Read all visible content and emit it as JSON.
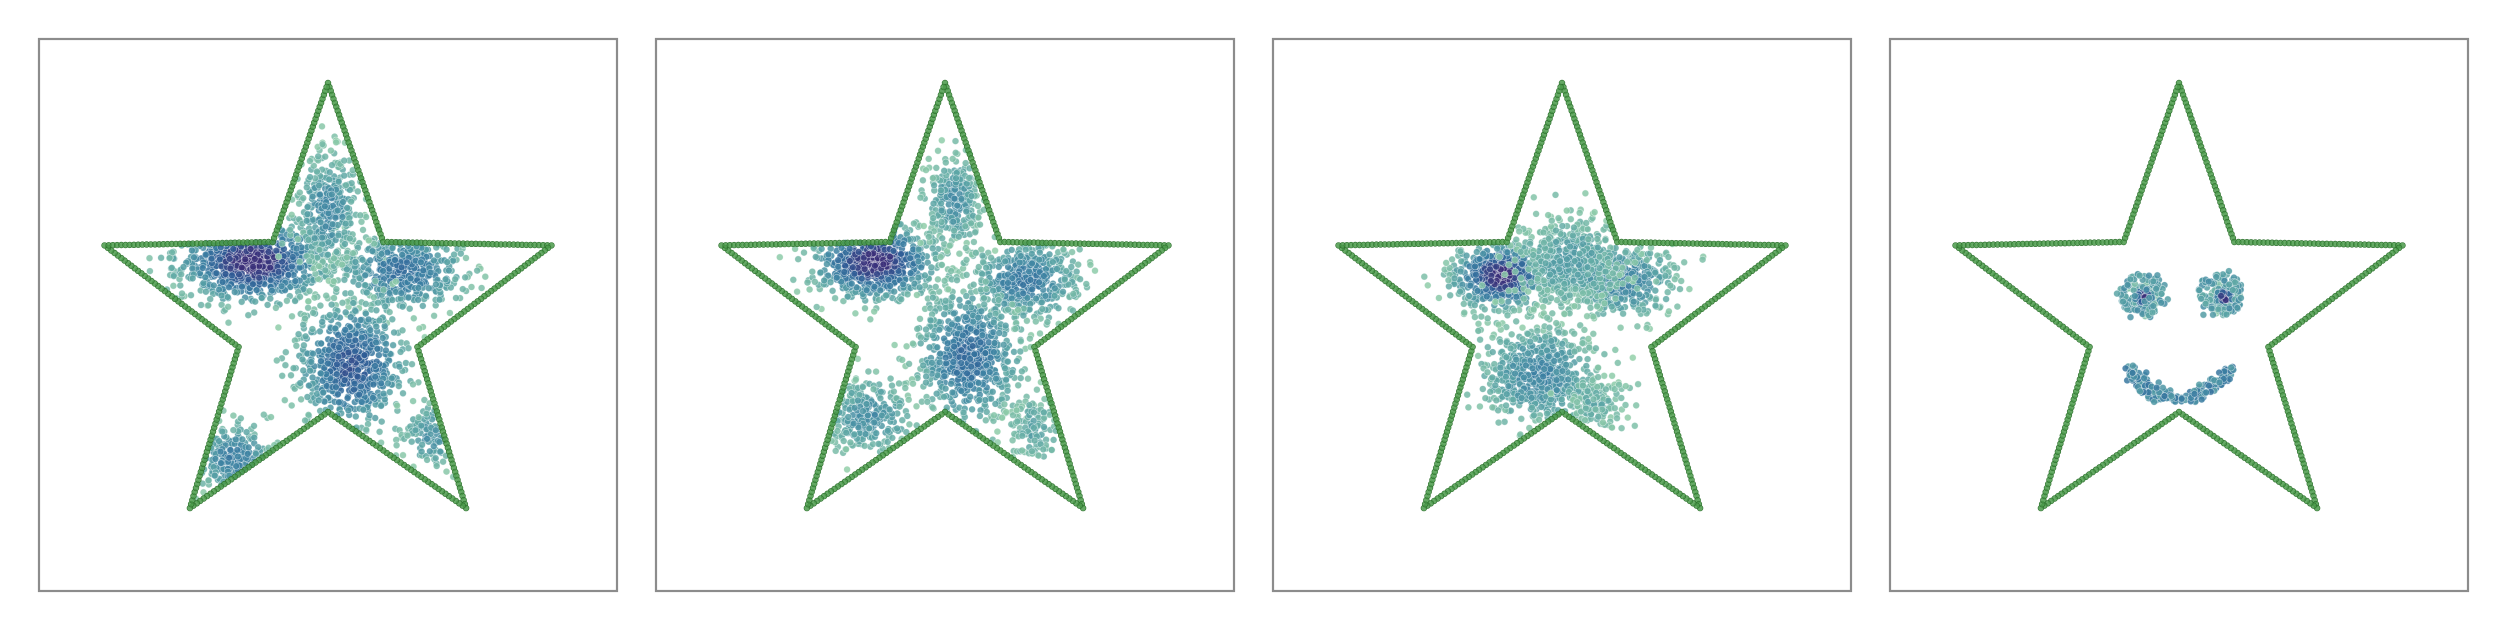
{
  "chart_data": [
    {
      "type": "scatter",
      "title": "",
      "xlabel": "",
      "ylabel": "",
      "axes": "hidden",
      "grid": false,
      "legend": "none",
      "outline_color": "#4a9a4a",
      "outline_edge_color": "#2c6f2c",
      "colormap": [
        "#95d1a9",
        "#5aa4a6",
        "#3a7ea2",
        "#2f5d96",
        "#3b2f79"
      ],
      "star": {
        "cx": 0.5,
        "cy": 0.5,
        "outer_radius": 0.5,
        "inner_radius": 0.2
      },
      "clusters": [
        {
          "name": "",
          "cx": 0.34,
          "cy": 0.38,
          "sx": 0.08,
          "sy": 0.045,
          "count": 900,
          "density": 1.0
        },
        {
          "name": "",
          "cx": 0.66,
          "cy": 0.4,
          "sx": 0.07,
          "sy": 0.045,
          "count": 500,
          "density": 0.55
        },
        {
          "name": "",
          "cx": 0.55,
          "cy": 0.6,
          "sx": 0.06,
          "sy": 0.07,
          "count": 700,
          "density": 0.75
        },
        {
          "name": "",
          "cx": 0.3,
          "cy": 0.8,
          "sx": 0.045,
          "sy": 0.04,
          "count": 260,
          "density": 0.45
        },
        {
          "name": "",
          "cx": 0.5,
          "cy": 0.27,
          "sx": 0.035,
          "sy": 0.06,
          "count": 350,
          "density": 0.4
        },
        {
          "name": "",
          "cx": 0.72,
          "cy": 0.75,
          "sx": 0.03,
          "sy": 0.04,
          "count": 120,
          "density": 0.3
        }
      ]
    },
    {
      "type": "scatter",
      "title": "",
      "xlabel": "",
      "ylabel": "",
      "axes": "hidden",
      "grid": false,
      "legend": "none",
      "clusters": [
        {
          "name": "",
          "cx": 0.35,
          "cy": 0.38,
          "sx": 0.065,
          "sy": 0.04,
          "count": 750,
          "density": 1.0
        },
        {
          "name": "",
          "cx": 0.67,
          "cy": 0.42,
          "sx": 0.06,
          "sy": 0.045,
          "count": 450,
          "density": 0.5
        },
        {
          "name": "",
          "cx": 0.55,
          "cy": 0.58,
          "sx": 0.055,
          "sy": 0.075,
          "count": 650,
          "density": 0.6
        },
        {
          "name": "",
          "cx": 0.34,
          "cy": 0.71,
          "sx": 0.05,
          "sy": 0.04,
          "count": 300,
          "density": 0.35
        },
        {
          "name": "",
          "cx": 0.52,
          "cy": 0.25,
          "sx": 0.03,
          "sy": 0.05,
          "count": 250,
          "density": 0.35
        },
        {
          "name": "",
          "cx": 0.69,
          "cy": 0.74,
          "sx": 0.03,
          "sy": 0.04,
          "count": 130,
          "density": 0.2
        }
      ]
    },
    {
      "type": "scatter",
      "title": "",
      "xlabel": "",
      "ylabel": "",
      "axes": "hidden",
      "grid": false,
      "legend": "none",
      "clusters": [
        {
          "name": "",
          "cx": 0.37,
          "cy": 0.41,
          "sx": 0.05,
          "sy": 0.035,
          "count": 600,
          "density": 1.0
        },
        {
          "name": "",
          "cx": 0.63,
          "cy": 0.42,
          "sx": 0.06,
          "sy": 0.04,
          "count": 420,
          "density": 0.45
        },
        {
          "name": "",
          "cx": 0.52,
          "cy": 0.38,
          "sx": 0.06,
          "sy": 0.05,
          "count": 500,
          "density": 0.25
        },
        {
          "name": "",
          "cx": 0.45,
          "cy": 0.62,
          "sx": 0.065,
          "sy": 0.055,
          "count": 650,
          "density": 0.4
        },
        {
          "name": "",
          "cx": 0.57,
          "cy": 0.68,
          "sx": 0.03,
          "sy": 0.03,
          "count": 140,
          "density": 0.15
        }
      ]
    },
    {
      "type": "scatter",
      "title": "",
      "xlabel": "",
      "ylabel": "",
      "axes": "hidden",
      "grid": false,
      "legend": "none",
      "rings": [
        {
          "name": "",
          "cx": 0.42,
          "cy": 0.45,
          "r": 0.04,
          "count": 90,
          "density": 0.35
        },
        {
          "name": "",
          "cx": 0.59,
          "cy": 0.45,
          "r": 0.04,
          "count": 90,
          "density": 0.35
        }
      ],
      "clusters": [
        {
          "name": "",
          "cx": 0.425,
          "cy": 0.455,
          "sx": 0.012,
          "sy": 0.012,
          "count": 180,
          "density": 1.0
        },
        {
          "name": "",
          "cx": 0.598,
          "cy": 0.455,
          "sx": 0.012,
          "sy": 0.012,
          "count": 180,
          "density": 1.0
        }
      ],
      "arcs": [
        {
          "name": "",
          "cx": 0.5,
          "cy": 0.55,
          "r": 0.12,
          "start_deg": 25,
          "end_deg": 155,
          "count": 220,
          "density": 0.5
        }
      ]
    }
  ]
}
